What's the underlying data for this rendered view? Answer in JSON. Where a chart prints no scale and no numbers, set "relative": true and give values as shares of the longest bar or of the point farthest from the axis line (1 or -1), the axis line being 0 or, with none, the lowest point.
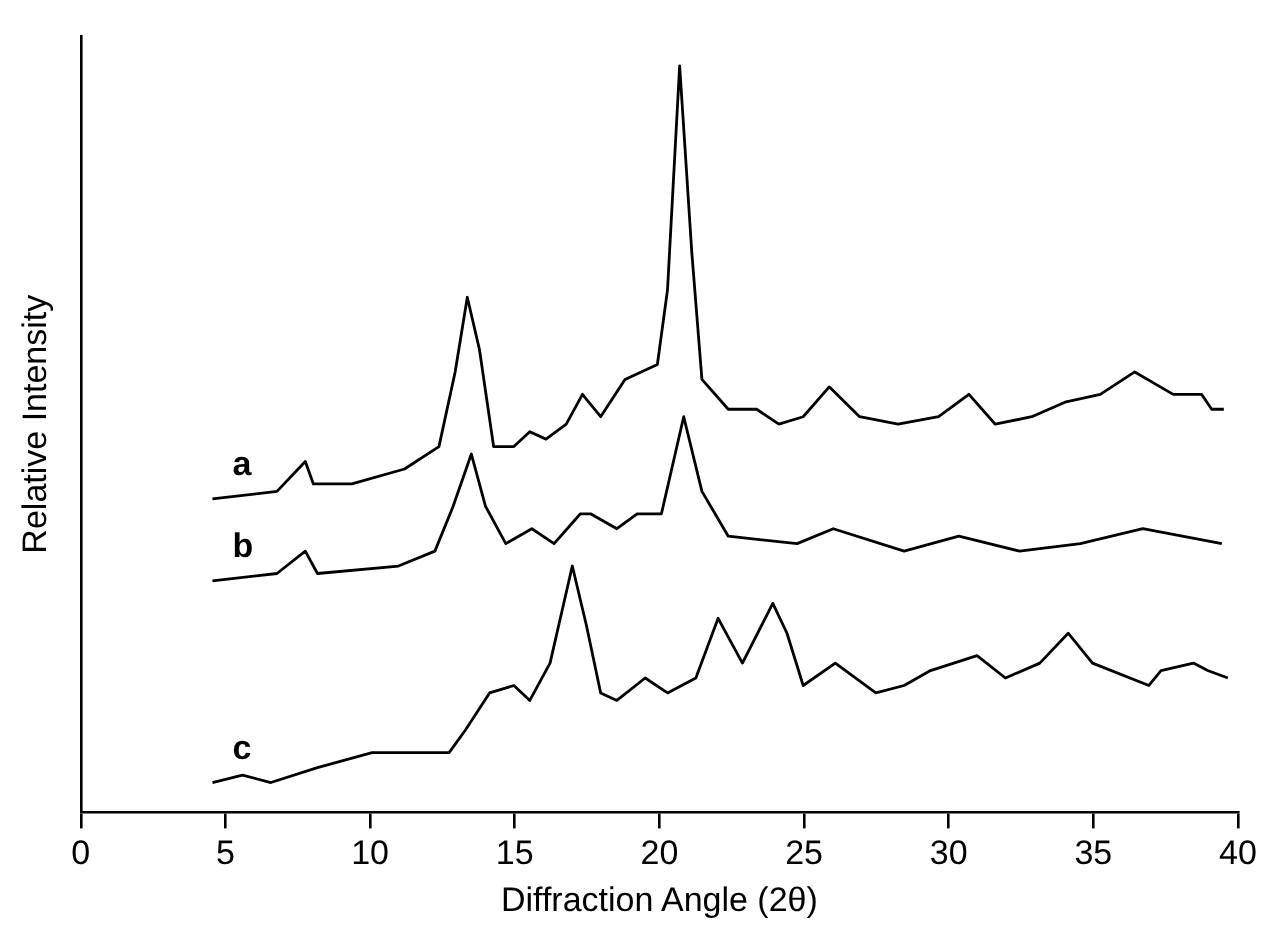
{
  "chart_data": {
    "type": "line",
    "xlabel": "Diffraction Angle (2θ)",
    "ylabel": "Relative Intensity",
    "relative": true,
    "xlim": [
      0,
      40
    ],
    "xticks": [
      0,
      5,
      10,
      15,
      20,
      25,
      30,
      35,
      40
    ],
    "grid": false,
    "legend": false,
    "marker": "none",
    "line_style": "solid",
    "series": [
      {
        "name": "a",
        "color": "#000000",
        "x": [
          4.55,
          6.78,
          7.76,
          8.04,
          9.37,
          11.19,
          12.38,
          12.94,
          13.36,
          13.78,
          14.27,
          14.97,
          15.52,
          16.08,
          16.78,
          17.34,
          17.97,
          18.81,
          19.37,
          19.93,
          20.28,
          20.7,
          21.12,
          21.47,
          22.38,
          23.36,
          24.13,
          24.97,
          25.87,
          26.92,
          28.25,
          29.65,
          30.7,
          31.61,
          32.87,
          34.06,
          35.24,
          36.43,
          37.76,
          38.74,
          39.09,
          39.51
        ],
        "values": [
          0.42,
          0.43,
          0.47,
          0.44,
          0.44,
          0.46,
          0.49,
          0.59,
          0.69,
          0.62,
          0.49,
          0.49,
          0.51,
          0.5,
          0.52,
          0.56,
          0.53,
          0.58,
          0.59,
          0.6,
          0.7,
          1,
          0.75,
          0.58,
          0.54,
          0.54,
          0.52,
          0.53,
          0.57,
          0.53,
          0.52,
          0.53,
          0.56,
          0.52,
          0.53,
          0.55,
          0.56,
          0.59,
          0.56,
          0.56,
          0.54,
          0.54
        ]
      },
      {
        "name": "b",
        "color": "#000000",
        "x": [
          4.55,
          6.78,
          7.76,
          8.18,
          10.98,
          12.24,
          12.87,
          13.5,
          13.99,
          14.69,
          15.59,
          16.36,
          17.27,
          17.62,
          18.53,
          19.23,
          20.07,
          20.84,
          21.47,
          22.38,
          24.76,
          26.01,
          28.46,
          30.35,
          32.45,
          34.55,
          36.71,
          39.44
        ],
        "values": [
          0.31,
          0.32,
          0.35,
          0.32,
          0.33,
          0.35,
          0.41,
          0.48,
          0.41,
          0.36,
          0.38,
          0.36,
          0.4,
          0.4,
          0.38,
          0.4,
          0.4,
          0.53,
          0.43,
          0.37,
          0.36,
          0.38,
          0.35,
          0.37,
          0.35,
          0.36,
          0.38,
          0.36
        ]
      },
      {
        "name": "c",
        "color": "#000000",
        "x": [
          4.55,
          5.59,
          6.57,
          8.18,
          10.07,
          11.19,
          12.73,
          13.29,
          14.13,
          14.97,
          15.52,
          16.22,
          16.99,
          17.48,
          17.97,
          18.53,
          19.51,
          20.28,
          21.26,
          22.03,
          22.87,
          23.92,
          24.41,
          24.97,
          26.08,
          27.48,
          28.46,
          29.37,
          30.98,
          31.96,
          33.15,
          34.13,
          34.97,
          36.92,
          37.34,
          38.46,
          38.95,
          39.65
        ],
        "values": [
          0.04,
          0.05,
          0.04,
          0.06,
          0.08,
          0.08,
          0.08,
          0.11,
          0.16,
          0.17,
          0.15,
          0.2,
          0.33,
          0.25,
          0.16,
          0.15,
          0.18,
          0.16,
          0.18,
          0.26,
          0.2,
          0.28,
          0.24,
          0.17,
          0.2,
          0.16,
          0.17,
          0.19,
          0.21,
          0.18,
          0.2,
          0.24,
          0.2,
          0.17,
          0.19,
          0.2,
          0.19,
          0.18
        ]
      }
    ]
  }
}
